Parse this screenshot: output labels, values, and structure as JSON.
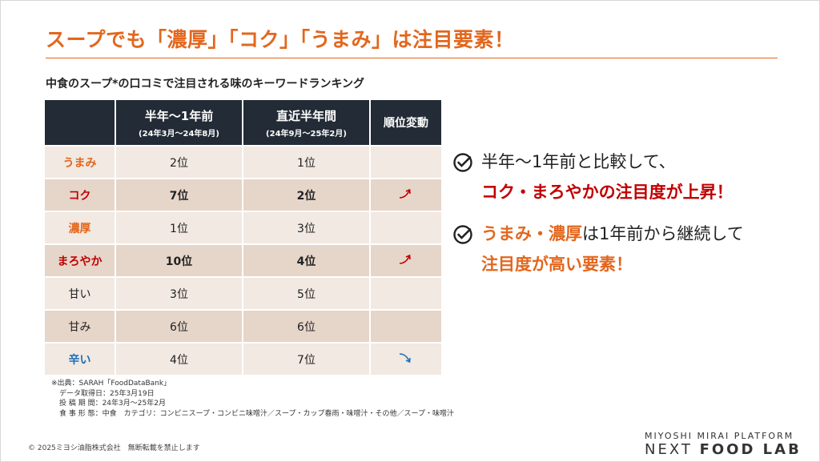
{
  "title": "スープでも「濃厚」「コク」「うまみ」は注目要素！",
  "subtitle": "中食のスープ*の口コミで注目される味のキーワードランキング",
  "table": {
    "headers": {
      "col1_main": "半年～1年前",
      "col1_sub": "(24年3月～24年8月)",
      "col2_main": "直近半年間",
      "col2_sub": "(24年9月～25年2月)",
      "col3": "順位変動"
    },
    "rows": [
      {
        "keyword": "うまみ",
        "prev": "2位",
        "recent": "1位",
        "change": "",
        "color": "orange"
      },
      {
        "keyword": "コク",
        "prev": "7位",
        "recent": "2位",
        "change": "up",
        "color": "red"
      },
      {
        "keyword": "濃厚",
        "prev": "1位",
        "recent": "3位",
        "change": "",
        "color": "orange"
      },
      {
        "keyword": "まろやか",
        "prev": "10位",
        "recent": "4位",
        "change": "up",
        "color": "red"
      },
      {
        "keyword": "甘い",
        "prev": "3位",
        "recent": "5位",
        "change": "",
        "color": "black"
      },
      {
        "keyword": "甘み",
        "prev": "6位",
        "recent": "6位",
        "change": "",
        "color": "black"
      },
      {
        "keyword": "辛い",
        "prev": "4位",
        "recent": "7位",
        "change": "down",
        "color": "blue"
      }
    ]
  },
  "source": {
    "line1": "※出典：SARAH「FoodDataBank」",
    "line2": "データ取得日：25年3月19日",
    "line3": "投 稿 期 間：24年3月～25年2月",
    "line4": "食 事 形 態：中食　カテゴリ：コンビニスープ・コンビニ味噌汁／スープ・カップ春雨・味噌汁・その他／スープ・味噌汁"
  },
  "points": {
    "p1_line1": "半年～1年前と比較して、",
    "p1_line2": "コク・まろやかの注目度が上昇！",
    "p2_hl": "うまみ・濃厚",
    "p2_rest": "は1年前から継続して",
    "p2_line2": "注目度が高い要素！"
  },
  "footer": {
    "copyright": "© 2025ミヨシ油脂株式会社　無断転載を禁止します",
    "brand_top": "MIYOSHI MIRAI PLATFORM",
    "brand_main_a": "NEXT ",
    "brand_main_b": "FOOD LAB"
  },
  "colors": {
    "accent_orange": "#e2671e",
    "accent_red": "#c00000",
    "accent_blue": "#1f6fb8",
    "header_navy": "#222b36",
    "row_light": "#f1e9e2",
    "row_dark": "#e6d5c9"
  },
  "icons": [
    "check-circle-icon",
    "arrow-up-icon",
    "arrow-down-icon"
  ]
}
